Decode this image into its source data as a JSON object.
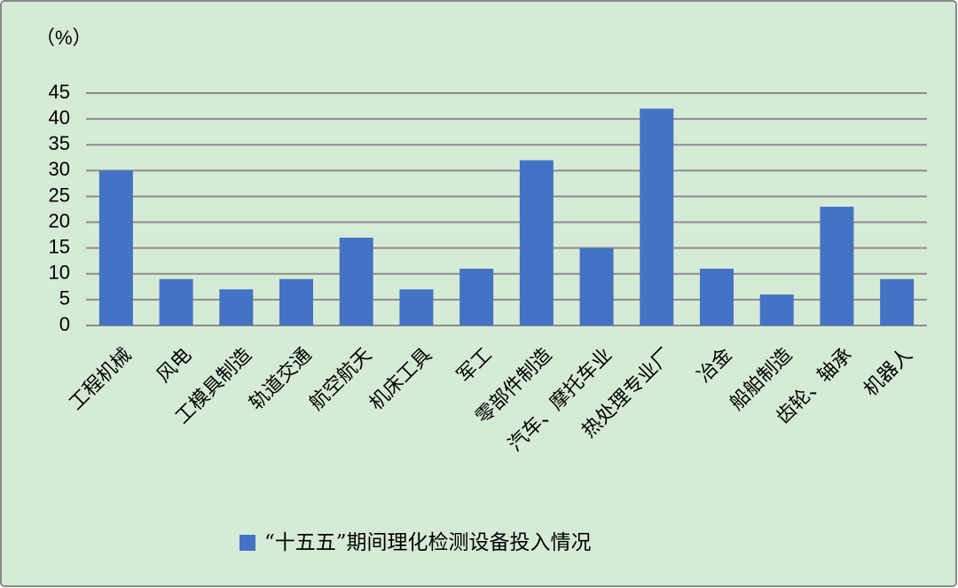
{
  "chart_data": {
    "type": "bar",
    "y_label": "（%）",
    "categories": [
      "工程机械",
      "风电",
      "工模具制造",
      "轨道交通",
      "航空航天",
      "机床工具",
      "军工",
      "零部件制造",
      "汽车、摩托车业",
      "热处理专业厂",
      "冶金",
      "船舶制造",
      "齿轮、轴承",
      "机器人"
    ],
    "series": [
      {
        "name": "“十五五”期间理化检测设备投入情况",
        "color": "#4472c4",
        "values": [
          30,
          9,
          7,
          9,
          17,
          7,
          11,
          32,
          15,
          42,
          11,
          6,
          23,
          9
        ]
      }
    ],
    "ylim": [
      0,
      45
    ],
    "yticks": [
      0,
      5,
      10,
      15,
      20,
      25,
      30,
      35,
      40,
      45
    ],
    "grid": true,
    "legend": "bottom"
  }
}
